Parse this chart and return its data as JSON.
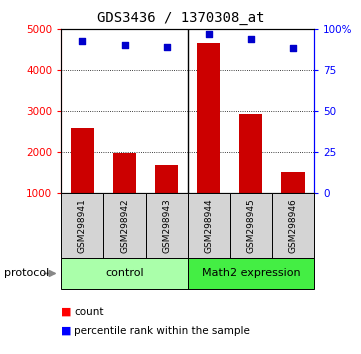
{
  "title": "GDS3436 / 1370308_at",
  "categories": [
    "GSM298941",
    "GSM298942",
    "GSM298943",
    "GSM298944",
    "GSM298945",
    "GSM298946"
  ],
  "bar_values": [
    2580,
    1970,
    1680,
    4650,
    2920,
    1510
  ],
  "scatter_values": [
    4700,
    4620,
    4560,
    4880,
    4760,
    4540
  ],
  "bar_color": "#cc0000",
  "scatter_color": "#0000cc",
  "ylim_left": [
    1000,
    5000
  ],
  "ylim_right": [
    0,
    100
  ],
  "yticks_left": [
    1000,
    2000,
    3000,
    4000,
    5000
  ],
  "ytick_labels_left": [
    "1000",
    "2000",
    "3000",
    "4000",
    "5000"
  ],
  "yticks_right": [
    0,
    25,
    50,
    75,
    100
  ],
  "ytick_labels_right": [
    "0",
    "25",
    "50",
    "75",
    "100%"
  ],
  "group_labels": [
    "control",
    "Math2 expression"
  ],
  "group_color_1": "#aaffaa",
  "group_color_2": "#44ee44",
  "protocol_label": "protocol",
  "legend_items": [
    "count",
    "percentile rank within the sample"
  ],
  "bar_width": 0.55,
  "background_color": "#ffffff",
  "plot_bg_color": "#ffffff",
  "tick_label_fontsize": 7.5,
  "title_fontsize": 10,
  "scatter_marker_size": 25
}
